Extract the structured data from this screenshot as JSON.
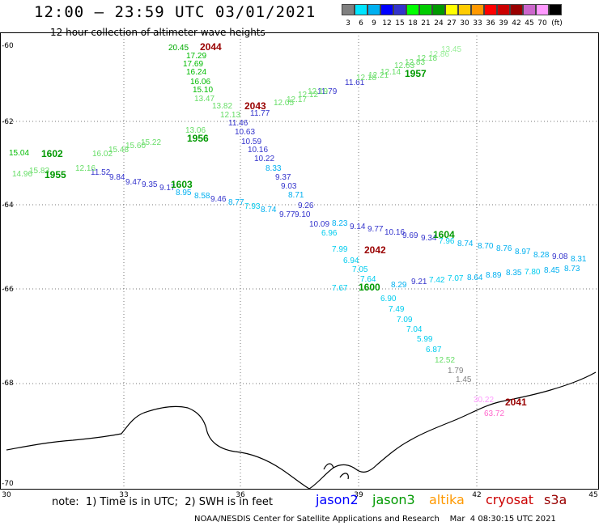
{
  "header": {
    "title": "12:00 – 23:59 UTC 03/01/2021",
    "subtitle": "12 hour collection of altimeter wave heights"
  },
  "colorbar": {
    "colors": [
      "#808080",
      "#00e5ff",
      "#00b0f0",
      "#0000ff",
      "#3333cc",
      "#00ff00",
      "#00cc00",
      "#009900",
      "#ffff00",
      "#ffcc00",
      "#ff9900",
      "#ff0000",
      "#cc0000",
      "#990000",
      "#cc66cc",
      "#ff99ff",
      "#000000"
    ],
    "labels": [
      "3",
      "6",
      "9",
      "12",
      "15",
      "18",
      "21",
      "24",
      "27",
      "30",
      "33",
      "36",
      "39",
      "42",
      "45",
      "70",
      "(ft)"
    ]
  },
  "axes": {
    "x_ticks": [
      "30",
      "33",
      "36",
      "39",
      "42",
      "45"
    ],
    "y_ticks": [
      "-60",
      "-62",
      "-64",
      "-66",
      "-68",
      "-70"
    ]
  },
  "tracks": {
    "t2044": {
      "label": "2044",
      "color": "#990000"
    },
    "t2043": {
      "label": "2043",
      "color": "#990000"
    },
    "t2042": {
      "label": "2042",
      "color": "#990000"
    },
    "t2041": {
      "label": "2041",
      "color": "#990000"
    },
    "t1957": {
      "label": "1957",
      "color": "#009900"
    },
    "t1956": {
      "label": "1956",
      "color": "#009900"
    },
    "t1955": {
      "label": "1955",
      "color": "#009900"
    },
    "t1602": {
      "label": "1602",
      "color": "#009900"
    },
    "t1603": {
      "label": "1603",
      "color": "#009900"
    },
    "t1604": {
      "label": "1604",
      "color": "#009900"
    },
    "t1600": {
      "label": "1600",
      "color": "#009900"
    }
  },
  "swh_labels": [
    {
      "t": "20.45",
      "c": "#00aa00"
    },
    {
      "t": "17.29",
      "c": "#00bb00"
    },
    {
      "t": "17.69",
      "c": "#00bb00"
    },
    {
      "t": "16.24",
      "c": "#00bb00"
    },
    {
      "t": "16.06",
      "c": "#00bb00"
    },
    {
      "t": "15.10",
      "c": "#00bb00"
    },
    {
      "t": "13.47",
      "c": "#66dd66"
    },
    {
      "t": "13.82",
      "c": "#66dd66"
    },
    {
      "t": "11.77",
      "c": "#3333cc"
    },
    {
      "t": "12.13",
      "c": "#66dd66"
    },
    {
      "t": "11.46",
      "c": "#3333cc"
    },
    {
      "t": "10.63",
      "c": "#3333cc"
    },
    {
      "t": "10.59",
      "c": "#3333cc"
    },
    {
      "t": "10.16",
      "c": "#3333cc"
    },
    {
      "t": "10.22",
      "c": "#3333cc"
    },
    {
      "t": "8.33",
      "c": "#00b0f0"
    },
    {
      "t": "9.37",
      "c": "#3333cc"
    },
    {
      "t": "9.03",
      "c": "#3333cc"
    },
    {
      "t": "8.71",
      "c": "#00b0f0"
    },
    {
      "t": "9.26",
      "c": "#3333cc"
    },
    {
      "t": "9.77",
      "c": "#3333cc"
    },
    {
      "t": "9.10",
      "c": "#3333cc"
    },
    {
      "t": "8.23",
      "c": "#00b0f0"
    },
    {
      "t": "10.09",
      "c": "#3333cc"
    },
    {
      "t": "6.96",
      "c": "#00ccee"
    },
    {
      "t": "9.14",
      "c": "#3333cc"
    },
    {
      "t": "9.77",
      "c": "#3333cc"
    },
    {
      "t": "10.16",
      "c": "#3333cc"
    },
    {
      "t": "9.69",
      "c": "#3333cc"
    },
    {
      "t": "9.34",
      "c": "#3333cc"
    },
    {
      "t": "7.96",
      "c": "#00ccee"
    },
    {
      "t": "8.74",
      "c": "#00b0f0"
    },
    {
      "t": "8.70",
      "c": "#00b0f0"
    },
    {
      "t": "8.76",
      "c": "#00b0f0"
    },
    {
      "t": "8.97",
      "c": "#00b0f0"
    },
    {
      "t": "8.28",
      "c": "#00b0f0"
    },
    {
      "t": "9.08",
      "c": "#3333cc"
    },
    {
      "t": "8.31",
      "c": "#00b0f0"
    },
    {
      "t": "7.99",
      "c": "#00ccee"
    },
    {
      "t": "6.94",
      "c": "#00ccee"
    },
    {
      "t": "7.05",
      "c": "#00ccee"
    },
    {
      "t": "7.64",
      "c": "#00ccee"
    },
    {
      "t": "7.67",
      "c": "#00ccee"
    },
    {
      "t": "8.29",
      "c": "#00b0f0"
    },
    {
      "t": "9.21",
      "c": "#3333cc"
    },
    {
      "t": "7.42",
      "c": "#00ccee"
    },
    {
      "t": "7.07",
      "c": "#00ccee"
    },
    {
      "t": "8.64",
      "c": "#00b0f0"
    },
    {
      "t": "8.89",
      "c": "#00b0f0"
    },
    {
      "t": "8.35",
      "c": "#00b0f0"
    },
    {
      "t": "7.80",
      "c": "#00ccee"
    },
    {
      "t": "8.45",
      "c": "#00b0f0"
    },
    {
      "t": "8.73",
      "c": "#00b0f0"
    },
    {
      "t": "6.90",
      "c": "#00ccee"
    },
    {
      "t": "7.49",
      "c": "#00ccee"
    },
    {
      "t": "7.09",
      "c": "#00ccee"
    },
    {
      "t": "7.04",
      "c": "#00ccee"
    },
    {
      "t": "5.99",
      "c": "#00ccee"
    },
    {
      "t": "6.87",
      "c": "#00ccee"
    },
    {
      "t": "12.52",
      "c": "#66dd66"
    },
    {
      "t": "1.79",
      "c": "#808080"
    },
    {
      "t": "1.45",
      "c": "#808080"
    },
    {
      "t": "30.22",
      "c": "#ff99ff"
    },
    {
      "t": "63.72",
      "c": "#ff66cc"
    },
    {
      "t": "11.79",
      "c": "#3333cc"
    },
    {
      "t": "11.61",
      "c": "#3333cc"
    },
    {
      "t": "15.04",
      "c": "#00bb00"
    },
    {
      "t": "11.52",
      "c": "#3333cc"
    },
    {
      "t": "9.84",
      "c": "#3333cc"
    },
    {
      "t": "9.47",
      "c": "#3333cc"
    },
    {
      "t": "9.35",
      "c": "#3333cc"
    },
    {
      "t": "9.17",
      "c": "#3333cc"
    },
    {
      "t": "8.95",
      "c": "#00b0f0"
    },
    {
      "t": "8.58",
      "c": "#00b0f0"
    },
    {
      "t": "9.46",
      "c": "#3333cc"
    },
    {
      "t": "8.77",
      "c": "#00b0f0"
    },
    {
      "t": "7.93",
      "c": "#00ccee"
    },
    {
      "t": "8.74",
      "c": "#00b0f0"
    },
    {
      "t": "16.02",
      "c": "#66dd66"
    },
    {
      "t": "15.48",
      "c": "#66dd66"
    },
    {
      "t": "15.60",
      "c": "#66dd66"
    },
    {
      "t": "15.22",
      "c": "#66dd66"
    },
    {
      "t": "13.06",
      "c": "#66dd66"
    },
    {
      "t": "15.83",
      "c": "#66dd66"
    },
    {
      "t": "14.96",
      "c": "#66dd66"
    },
    {
      "t": "12.16",
      "c": "#66dd66"
    }
  ],
  "footer": {
    "note": "note:  1) Time is in UTC;  2) SWH is in feet",
    "credit": "NOAA/NESDIS Center for Satellite Applications and Research    Mar  4 08:30:15 UTC 2021",
    "satellites": [
      {
        "name": "jason2",
        "color": "#0000ff"
      },
      {
        "name": "jason3",
        "color": "#009900"
      },
      {
        "name": "altika",
        "color": "#ff9900"
      },
      {
        "name": "cryosat",
        "color": "#cc0000"
      },
      {
        "name": "s3a",
        "color": "#990000"
      }
    ]
  }
}
